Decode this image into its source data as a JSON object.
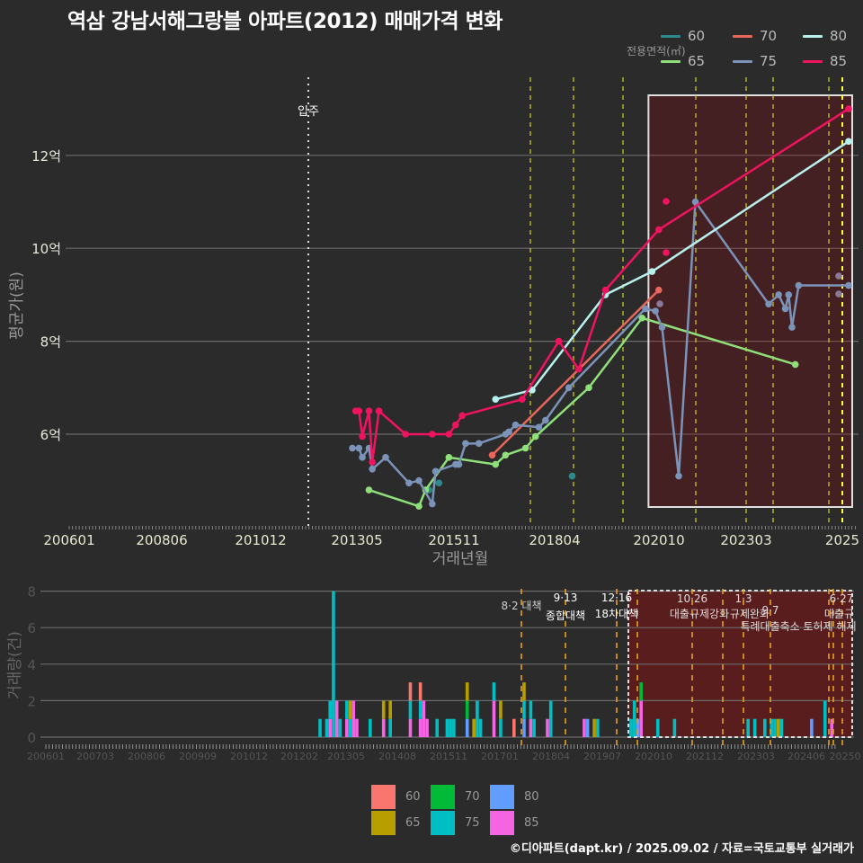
{
  "title": "역삼 강남서해그랑블 아파트(2012) 매매가격 변화",
  "legend": {
    "title": "전용면적(㎡)",
    "items": [
      {
        "label": "60",
        "color": "#2a8a8c"
      },
      {
        "label": "70",
        "color": "#e8675a"
      },
      {
        "label": "80",
        "color": "#b8f0ee"
      },
      {
        "label": "65",
        "color": "#8fe07a"
      },
      {
        "label": "75",
        "color": "#7b93b8"
      },
      {
        "label": "85",
        "color": "#f0135f"
      }
    ]
  },
  "bottom_legend": {
    "items": [
      {
        "label": "60",
        "color": "#f8766d"
      },
      {
        "label": "70",
        "color": "#00ba38"
      },
      {
        "label": "80",
        "color": "#619cff"
      },
      {
        "label": "65",
        "color": "#b79f00"
      },
      {
        "label": "75",
        "color": "#00bfc4"
      },
      {
        "label": "85",
        "color": "#f564e3"
      }
    ]
  },
  "footer": "©디아파트(dapt.kr) / 2025.09.02 / 자료=국토교통부 실거래가",
  "chart_data": [
    {
      "type": "line",
      "title": "역삼 강남서해그랑블 아파트(2012) 매매가격 변화",
      "xlabel": "거래년월",
      "ylabel": "평균가(원)",
      "x_ticks": [
        "200601",
        "200806",
        "201012",
        "201305",
        "201511",
        "201804",
        "202010",
        "202303",
        "2025"
      ],
      "y_ticks": [
        "6억",
        "8억",
        "10억",
        "12억"
      ],
      "ylim": [
        4.0,
        13.5
      ],
      "annotation": {
        "label": "입주",
        "x": "201201"
      },
      "policy_lines": [
        "201708",
        "201809",
        "201912",
        "202010",
        "202110",
        "202301",
        "202309",
        "202502",
        "202506"
      ],
      "highlight_box": {
        "from": "202008",
        "to": "202508"
      },
      "series": [
        {
          "name": "60",
          "points": [
            [
              "201808",
              5.1
            ],
            [
              "201501",
              4.8
            ],
            [
              "201504",
              4.95
            ]
          ]
        },
        {
          "name": "65",
          "points": [
            [
              "201307",
              4.8
            ],
            [
              "201410",
              4.45
            ],
            [
              "201412",
              4.8
            ],
            [
              "201507",
              5.5
            ],
            [
              "201609",
              5.35
            ],
            [
              "201612",
              5.55
            ],
            [
              "201706",
              5.7
            ],
            [
              "201709",
              5.95
            ],
            [
              "201901",
              7.0
            ],
            [
              "202005",
              8.5
            ],
            [
              "202403",
              7.5
            ]
          ]
        },
        {
          "name": "70",
          "points": [
            [
              "201608",
              5.55
            ],
            [
              "202010",
              9.1
            ]
          ]
        },
        {
          "name": "75",
          "points": [
            [
              "201302",
              5.7
            ],
            [
              "201304",
              5.7
            ],
            [
              "201305",
              5.5
            ],
            [
              "201307",
              5.7
            ],
            [
              "201308",
              5.25
            ],
            [
              "201312",
              5.5
            ],
            [
              "201407",
              4.95
            ],
            [
              "201410",
              5.0
            ],
            [
              "201502",
              4.5
            ],
            [
              "201503",
              5.2
            ],
            [
              "201509",
              5.35
            ],
            [
              "201510",
              5.35
            ],
            [
              "201512",
              5.8
            ],
            [
              "201604",
              5.8
            ],
            [
              "201612",
              6.0
            ],
            [
              "201701",
              6.05
            ],
            [
              "201703",
              6.2
            ],
            [
              "201710",
              6.15
            ],
            [
              "201712",
              6.3
            ],
            [
              "201807",
              7.0
            ],
            [
              "202006",
              8.7
            ],
            [
              "202009",
              8.65
            ],
            [
              "202011",
              8.3
            ],
            [
              "202104",
              5.1
            ],
            [
              "202109",
              11.0
            ],
            [
              "202307",
              8.8
            ],
            [
              "202310",
              9.0
            ],
            [
              "202312",
              8.7
            ],
            [
              "202401",
              9.0
            ],
            [
              "202402",
              8.3
            ],
            [
              "202404",
              9.2
            ],
            [
              "202507",
              9.2
            ]
          ]
        },
        {
          "name": "80",
          "points": [
            [
              "201609",
              6.75
            ],
            [
              "201708",
              6.95
            ],
            [
              "201906",
              9.0
            ],
            [
              "202008",
              9.5
            ],
            [
              "202507",
              12.3
            ]
          ]
        },
        {
          "name": "85",
          "points": [
            [
              "201303",
              6.5
            ],
            [
              "201304",
              6.5
            ],
            [
              "201305",
              5.95
            ],
            [
              "201307",
              6.5
            ],
            [
              "201308",
              5.4
            ],
            [
              "201310",
              6.5
            ],
            [
              "201406",
              6.0
            ],
            [
              "201502",
              6.0
            ],
            [
              "201507",
              6.0
            ],
            [
              "201509",
              6.2
            ],
            [
              "201511",
              6.4
            ],
            [
              "201705",
              6.75
            ],
            [
              "201804",
              8.0
            ],
            [
              "201810",
              7.4
            ],
            [
              "201906",
              9.1
            ],
            [
              "202010",
              10.4
            ],
            [
              "202507",
              13.0
            ]
          ]
        }
      ]
    },
    {
      "type": "bar",
      "xlabel": "",
      "ylabel": "거래량(건)",
      "x_ticks": [
        "200601",
        "200703",
        "200806",
        "200909",
        "201012",
        "201202",
        "201305",
        "201408",
        "201511",
        "201701",
        "201804",
        "201907",
        "202010",
        "202112",
        "202303",
        "202406",
        "20250"
      ],
      "y_ticks": [
        0,
        2,
        4,
        6,
        8
      ],
      "ylim": [
        0,
        8
      ],
      "stacked": true,
      "annotations": [
        {
          "date": "8·2",
          "label": "대책"
        },
        {
          "date": "9·13",
          "label": "종합대책"
        },
        {
          "date": "12·16",
          "label": "18차대책"
        },
        {
          "date": "10·26",
          "label": "대출규제강화"
        },
        {
          "date": "1·3",
          "label": "규제완화"
        },
        {
          "date": "9·7",
          "label": "특례대출축소 토허제 해제"
        },
        {
          "date": "6·27",
          "label": "대출규"
        }
      ],
      "bars": [
        {
          "x": "201211",
          "stack": [
            {
              "s": "75",
              "v": 1
            }
          ]
        },
        {
          "x": "201301",
          "stack": [
            {
              "s": "75",
              "v": 1
            }
          ]
        },
        {
          "x": "201302",
          "stack": [
            {
              "s": "85",
              "v": 1
            },
            {
              "s": "75",
              "v": 1
            }
          ]
        },
        {
          "x": "201303",
          "stack": [
            {
              "s": "75",
              "v": 8
            }
          ]
        },
        {
          "x": "201304",
          "stack": [
            {
              "s": "85",
              "v": 2
            }
          ]
        },
        {
          "x": "201305",
          "stack": [
            {
              "s": "75",
              "v": 1
            }
          ]
        },
        {
          "x": "201307",
          "stack": [
            {
              "s": "85",
              "v": 1
            },
            {
              "s": "75",
              "v": 1
            }
          ]
        },
        {
          "x": "201308",
          "stack": [
            {
              "s": "75",
              "v": 1
            },
            {
              "s": "65",
              "v": 1
            }
          ]
        },
        {
          "x": "201309",
          "stack": [
            {
              "s": "85",
              "v": 2
            }
          ]
        },
        {
          "x": "201310",
          "stack": [
            {
              "s": "85",
              "v": 1
            }
          ]
        },
        {
          "x": "201402",
          "stack": [
            {
              "s": "75",
              "v": 1
            }
          ]
        },
        {
          "x": "201406",
          "stack": [
            {
              "s": "85",
              "v": 1
            },
            {
              "s": "65",
              "v": 1
            }
          ]
        },
        {
          "x": "201408",
          "stack": [
            {
              "s": "75",
              "v": 1
            },
            {
              "s": "65",
              "v": 1
            }
          ]
        },
        {
          "x": "201502",
          "stack": [
            {
              "s": "85",
              "v": 1
            },
            {
              "s": "75",
              "v": 1
            },
            {
              "s": "60",
              "v": 1
            }
          ]
        },
        {
          "x": "201505",
          "stack": [
            {
              "s": "85",
              "v": 1
            },
            {
              "s": "75",
              "v": 1
            },
            {
              "s": "60",
              "v": 1
            }
          ]
        },
        {
          "x": "201506",
          "stack": [
            {
              "s": "85",
              "v": 2
            }
          ]
        },
        {
          "x": "201507",
          "stack": [
            {
              "s": "85",
              "v": 1
            }
          ]
        },
        {
          "x": "201510",
          "stack": [
            {
              "s": "75",
              "v": 1
            }
          ]
        },
        {
          "x": "201601",
          "stack": [
            {
              "s": "75",
              "v": 1
            }
          ]
        },
        {
          "x": "201602",
          "stack": [
            {
              "s": "75",
              "v": 1
            }
          ]
        },
        {
          "x": "201603",
          "stack": [
            {
              "s": "75",
              "v": 1
            }
          ]
        },
        {
          "x": "201607",
          "stack": [
            {
              "s": "80",
              "v": 1
            },
            {
              "s": "70",
              "v": 1
            },
            {
              "s": "65",
              "v": 1
            }
          ]
        },
        {
          "x": "201609",
          "stack": [
            {
              "s": "65",
              "v": 1
            }
          ]
        },
        {
          "x": "201610",
          "stack": [
            {
              "s": "75",
              "v": 2
            }
          ]
        },
        {
          "x": "201611",
          "stack": [
            {
              "s": "75",
              "v": 1
            }
          ]
        },
        {
          "x": "201703",
          "stack": [
            {
              "s": "85",
              "v": 2
            },
            {
              "s": "75",
              "v": 1
            }
          ]
        },
        {
          "x": "201705",
          "stack": [
            {
              "s": "75",
              "v": 1
            },
            {
              "s": "65",
              "v": 1
            }
          ]
        },
        {
          "x": "201709",
          "stack": [
            {
              "s": "60",
              "v": 1
            }
          ]
        },
        {
          "x": "201712",
          "stack": [
            {
              "s": "80",
              "v": 1
            },
            {
              "s": "75",
              "v": 1
            },
            {
              "s": "65",
              "v": 1
            }
          ]
        },
        {
          "x": "201802",
          "stack": [
            {
              "s": "85",
              "v": 1
            },
            {
              "s": "75",
              "v": 1
            }
          ]
        },
        {
          "x": "201803",
          "stack": [
            {
              "s": "75",
              "v": 1
            }
          ]
        },
        {
          "x": "201807",
          "stack": [
            {
              "s": "85",
              "v": 1
            }
          ]
        },
        {
          "x": "201808",
          "stack": [
            {
              "s": "75",
              "v": 2
            }
          ]
        },
        {
          "x": "201906",
          "stack": [
            {
              "s": "85",
              "v": 1
            }
          ]
        },
        {
          "x": "201907",
          "stack": [
            {
              "s": "80",
              "v": 1
            }
          ]
        },
        {
          "x": "201909",
          "stack": [
            {
              "s": "65",
              "v": 1
            }
          ]
        },
        {
          "x": "201910",
          "stack": [
            {
              "s": "75",
              "v": 1
            }
          ]
        },
        {
          "x": "202008",
          "stack": [
            {
              "s": "75",
              "v": 1
            }
          ]
        },
        {
          "x": "202009",
          "stack": [
            {
              "s": "75",
              "v": 2
            }
          ]
        },
        {
          "x": "202010",
          "stack": [
            {
              "s": "80",
              "v": 1
            }
          ]
        },
        {
          "x": "202011",
          "stack": [
            {
              "s": "85",
              "v": 2
            },
            {
              "s": "70",
              "v": 1
            }
          ]
        },
        {
          "x": "202104",
          "stack": [
            {
              "s": "75",
              "v": 1
            }
          ]
        },
        {
          "x": "202109",
          "stack": [
            {
              "s": "75",
              "v": 1
            }
          ]
        },
        {
          "x": "202307",
          "stack": [
            {
              "s": "75",
              "v": 1
            }
          ]
        },
        {
          "x": "202309",
          "stack": [
            {
              "s": "75",
              "v": 1
            }
          ]
        },
        {
          "x": "202312",
          "stack": [
            {
              "s": "75",
              "v": 1
            }
          ]
        },
        {
          "x": "202402",
          "stack": [
            {
              "s": "75",
              "v": 1
            }
          ]
        },
        {
          "x": "202403",
          "stack": [
            {
              "s": "75",
              "v": 1
            }
          ]
        },
        {
          "x": "202404",
          "stack": [
            {
              "s": "65",
              "v": 1
            }
          ]
        },
        {
          "x": "202405",
          "stack": [
            {
              "s": "75",
              "v": 1
            }
          ]
        },
        {
          "x": "202502",
          "stack": [
            {
              "s": "80",
              "v": 1
            }
          ]
        },
        {
          "x": "202506",
          "stack": [
            {
              "s": "75",
              "v": 2
            }
          ]
        },
        {
          "x": "202508",
          "stack": [
            {
              "s": "85",
              "v": 1
            }
          ]
        }
      ]
    }
  ]
}
